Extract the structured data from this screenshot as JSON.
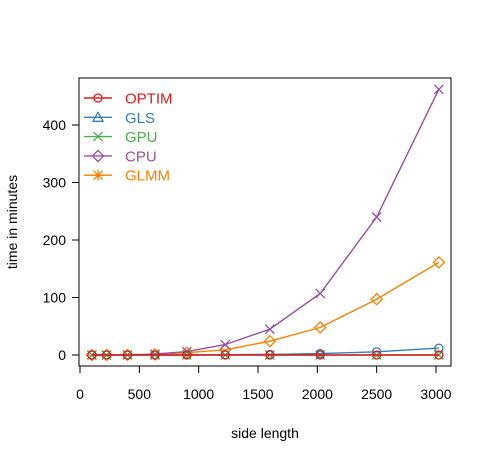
{
  "chart_data": {
    "type": "line",
    "xlabel": "side length",
    "ylabel": "time in minutes",
    "xlim": [
      0,
      3100
    ],
    "ylim": [
      -10,
      480
    ],
    "x_ticks": [
      0,
      500,
      1000,
      1500,
      2000,
      2500,
      3000
    ],
    "y_ticks": [
      0,
      100,
      200,
      300,
      400
    ],
    "x": [
      100,
      224,
      400,
      632,
      900,
      1224,
      1600,
      2024,
      2500,
      3024
    ],
    "legend_position": "top-left",
    "series": [
      {
        "name": "OPTIM",
        "color": "#E41A1C",
        "marker": "circle",
        "values": [
          0,
          0,
          0,
          0,
          0,
          0,
          0,
          0,
          0,
          0
        ]
      },
      {
        "name": "GLS",
        "color": "#377EB8",
        "marker": "triangle",
        "values": [
          0,
          0,
          0,
          0,
          0.2,
          0.5,
          1,
          2.5,
          5.5,
          12
        ]
      },
      {
        "name": "GPU",
        "color": "#4DAF4A",
        "marker": "x",
        "values": [
          0,
          0,
          0,
          0,
          0,
          0,
          0,
          0,
          0,
          0
        ]
      },
      {
        "name": "CPU",
        "color": "#984EA3",
        "marker": "diamond",
        "values": [
          0,
          0,
          0.3,
          1.5,
          6,
          18,
          45,
          107,
          240,
          462
        ]
      },
      {
        "name": "GLMM",
        "color": "#FF7F00",
        "marker": "star",
        "values": [
          0,
          0,
          0.2,
          1,
          4,
          9,
          24,
          48,
          97,
          161
        ]
      }
    ],
    "marker_note": "CPU series drawn with x markers, GPU legend with x markers"
  }
}
